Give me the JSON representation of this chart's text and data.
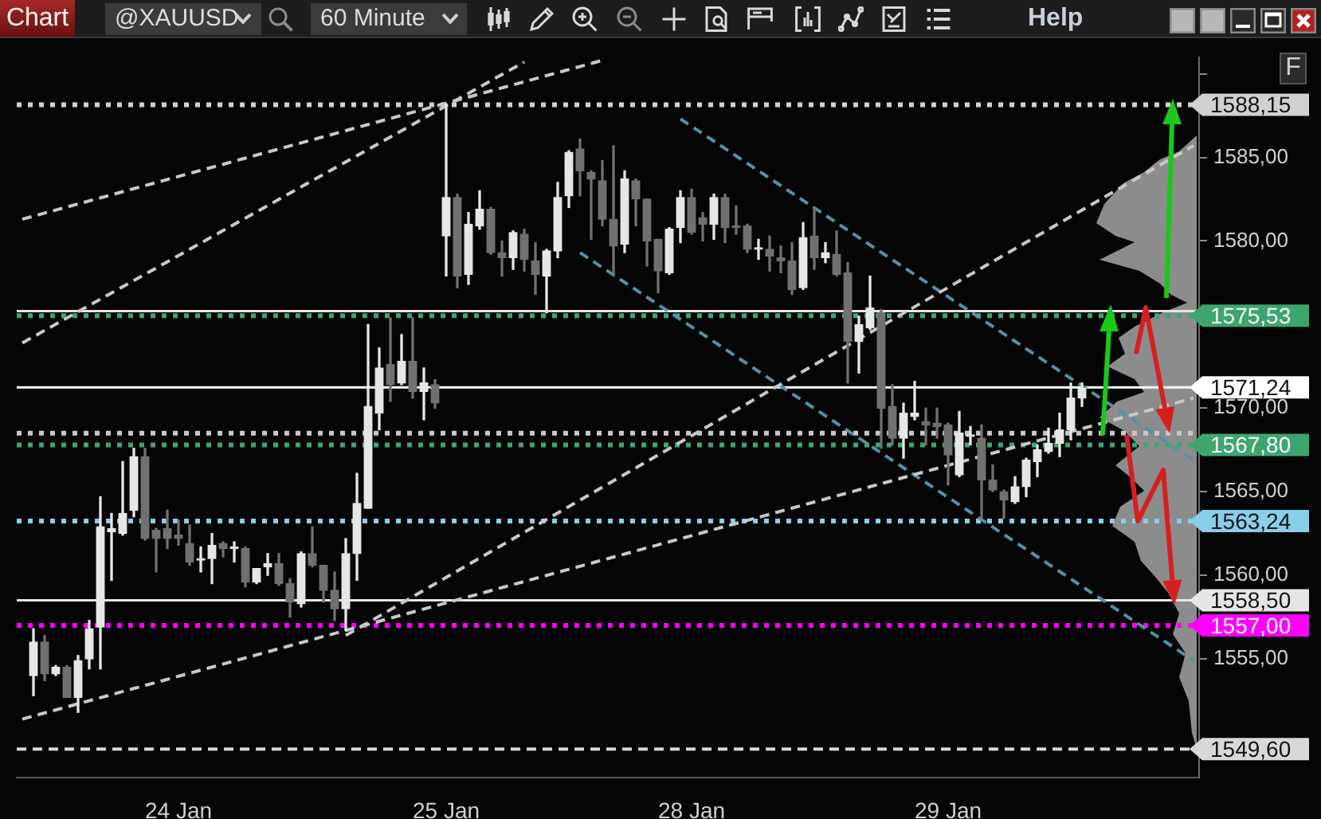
{
  "chart_data": {
    "type": "candlestick",
    "annotations": [
      "Chart",
      "@XAUUSD",
      "60 Minute",
      "Help",
      "F"
    ],
    "categories": [
      null,
      null,
      null,
      null,
      null,
      null,
      null,
      null,
      null,
      null,
      null,
      null,
      null,
      null,
      "24 Jan",
      null,
      null,
      null,
      null,
      null,
      null,
      null,
      null,
      null,
      null,
      null,
      null,
      null,
      null,
      null,
      null,
      null,
      null,
      null,
      null,
      null,
      null,
      null,
      "25 Jan",
      null,
      null,
      null,
      null,
      null,
      null,
      null,
      null,
      null,
      null,
      null,
      null,
      null,
      null,
      null,
      null,
      null,
      null,
      null,
      null,
      null,
      "28 Jan",
      null,
      null,
      null,
      null,
      null,
      null,
      null,
      null,
      null,
      null,
      null,
      null,
      null,
      null,
      null,
      null,
      null,
      null,
      null,
      null,
      null,
      null,
      "29 Jan",
      null,
      null,
      null,
      null,
      null,
      null,
      null,
      null,
      null,
      null,
      null,
      null,
      null,
      null,
      null,
      null,
      null,
      null,
      null,
      null,
      null,
      null
    ],
    "ohlc": [
      null,
      [
        1554.0,
        1556.8,
        1552.8,
        1556.0
      ],
      [
        1556.0,
        1556.4,
        1553.7,
        1554.1
      ],
      [
        1554.1,
        1554.6,
        1554.0,
        1554.5
      ],
      [
        1554.5,
        1554.6,
        1552.7,
        1552.7
      ],
      [
        1552.7,
        1555.2,
        1551.8,
        1554.9
      ],
      [
        1555.0,
        1557.3,
        1554.4,
        1556.8
      ],
      [
        1556.9,
        1564.7,
        1554.4,
        1562.9
      ],
      [
        1562.6,
        1563.7,
        1559.7,
        1562.8
      ],
      [
        1562.5,
        1566.8,
        1562.4,
        1563.7
      ],
      [
        1563.9,
        1567.6,
        1563.5,
        1567.1
      ],
      [
        1567.1,
        1567.6,
        1562.1,
        1562.2
      ],
      [
        1562.7,
        1562.8,
        1560.2,
        1562.2
      ],
      [
        1562.8,
        1563.9,
        1561.6,
        1562.2
      ],
      [
        1562.4,
        1563.3,
        1561.8,
        1562.2
      ],
      [
        1561.9,
        1563.0,
        1560.6,
        1560.8
      ],
      [
        1560.9,
        1561.7,
        1560.2,
        1560.9
      ],
      [
        1561.0,
        1562.5,
        1559.5,
        1561.8
      ],
      [
        1561.9,
        1562.0,
        1561.1,
        1561.6
      ],
      [
        1561.6,
        1562.0,
        1560.8,
        1561.6
      ],
      [
        1561.6,
        1561.7,
        1559.3,
        1559.6
      ],
      [
        1559.6,
        1560.4,
        1559.5,
        1560.4
      ],
      [
        1560.5,
        1561.3,
        1560.0,
        1560.7
      ],
      [
        1560.7,
        1561.3,
        1559.4,
        1559.5
      ],
      [
        1559.5,
        1559.8,
        1557.5,
        1558.4
      ],
      [
        1558.3,
        1561.4,
        1558.1,
        1561.3
      ],
      [
        1561.3,
        1562.9,
        1560.5,
        1560.6
      ],
      [
        1560.6,
        1560.6,
        1558.4,
        1559.1
      ],
      [
        1559.1,
        1560.2,
        1557.3,
        1558.0
      ],
      [
        1558.0,
        1562.2,
        1556.7,
        1561.3
      ],
      [
        1561.3,
        1566.1,
        1559.7,
        1564.3
      ],
      [
        1564.0,
        1575.0,
        1564.0,
        1570.1
      ],
      [
        1569.7,
        1573.6,
        1568.7,
        1572.4
      ],
      [
        1572.6,
        1575.4,
        1570.4,
        1571.4
      ],
      [
        1571.5,
        1574.4,
        1571.4,
        1572.8
      ],
      [
        1572.8,
        1575.4,
        1570.6,
        1571.0
      ],
      [
        1571.0,
        1572.4,
        1569.3,
        1571.5
      ],
      [
        1571.4,
        1571.7,
        1570.0,
        1570.3
      ],
      [
        1580.3,
        1588.2,
        1577.9,
        1582.6
      ],
      [
        1582.6,
        1582.8,
        1577.2,
        1577.9
      ],
      [
        1578.0,
        1581.7,
        1577.4,
        1581.0
      ],
      [
        1580.9,
        1583.0,
        1580.7,
        1581.9
      ],
      [
        1581.9,
        1582.0,
        1579.2,
        1579.3
      ],
      [
        1579.3,
        1580.0,
        1577.9,
        1579.0
      ],
      [
        1579.0,
        1580.6,
        1578.3,
        1580.5
      ],
      [
        1580.4,
        1580.7,
        1578.2,
        1578.9
      ],
      [
        1578.8,
        1579.9,
        1576.8,
        1578.0
      ],
      [
        1577.9,
        1579.5,
        1575.7,
        1579.4
      ],
      [
        1579.4,
        1583.5,
        1579.0,
        1582.6
      ],
      [
        1582.7,
        1585.4,
        1582.0,
        1585.3
      ],
      [
        1585.5,
        1586.1,
        1582.7,
        1584.2
      ],
      [
        1584.1,
        1584.2,
        1580.1,
        1583.7
      ],
      [
        1583.6,
        1584.8,
        1580.9,
        1581.3
      ],
      [
        1581.3,
        1585.7,
        1577.9,
        1579.7
      ],
      [
        1579.8,
        1584.2,
        1579.3,
        1583.7
      ],
      [
        1583.6,
        1583.7,
        1580.9,
        1582.5
      ],
      [
        1582.5,
        1582.5,
        1578.5,
        1580.0
      ],
      [
        1580.1,
        1580.1,
        1576.9,
        1578.2
      ],
      [
        1578.1,
        1580.8,
        1578.0,
        1580.7
      ],
      [
        1580.8,
        1583.0,
        1579.9,
        1582.6
      ],
      [
        1582.6,
        1583.1,
        1580.4,
        1580.5
      ],
      [
        1581.4,
        1581.7,
        1580.0,
        1581.0
      ],
      [
        1581.0,
        1582.8,
        1580.1,
        1582.6
      ],
      [
        1582.6,
        1582.8,
        1579.9,
        1580.8
      ],
      [
        1580.9,
        1582.1,
        1580.4,
        1580.8
      ],
      [
        1580.9,
        1581.0,
        1579.3,
        1579.5
      ],
      [
        1579.5,
        1580.1,
        1578.9,
        1579.5
      ],
      [
        1579.5,
        1580.3,
        1578.2,
        1579.1
      ],
      [
        1579.0,
        1579.7,
        1578.1,
        1578.8
      ],
      [
        1578.8,
        1579.9,
        1576.8,
        1577.1
      ],
      [
        1577.2,
        1581.1,
        1577.1,
        1580.2
      ],
      [
        1580.3,
        1582.0,
        1578.3,
        1579.0
      ],
      [
        1579.0,
        1579.9,
        1578.7,
        1579.3
      ],
      [
        1579.2,
        1580.6,
        1577.9,
        1578.0
      ],
      [
        1578.1,
        1578.7,
        1571.5,
        1574.0
      ],
      [
        1574.0,
        1575.5,
        1572.1,
        1575.0
      ],
      [
        1574.8,
        1577.9,
        1574.7,
        1576.0
      ],
      [
        1575.7,
        1575.9,
        1567.6,
        1570.0
      ],
      [
        1570.1,
        1571.4,
        1567.8,
        1568.2
      ],
      [
        1568.2,
        1570.3,
        1567.0,
        1569.7
      ],
      [
        1569.5,
        1571.6,
        1569.3,
        1569.7
      ],
      [
        1569.2,
        1570.0,
        1567.8,
        1569.0
      ],
      [
        1569.1,
        1570.0,
        1568.2,
        1568.9
      ],
      [
        1569.0,
        1569.1,
        1565.4,
        1567.2
      ],
      [
        1566.0,
        1569.8,
        1565.9,
        1568.5
      ],
      [
        1568.3,
        1568.9,
        1567.8,
        1568.4
      ],
      [
        1568.2,
        1569.0,
        1563.4,
        1565.7
      ],
      [
        1565.7,
        1566.6,
        1565.0,
        1565.1
      ],
      [
        1565.0,
        1565.1,
        1563.4,
        1564.5
      ],
      [
        1564.4,
        1565.9,
        1564.3,
        1565.3
      ],
      [
        1565.3,
        1567.0,
        1564.7,
        1566.9
      ],
      [
        1566.8,
        1567.8,
        1565.9,
        1567.5
      ],
      [
        1567.4,
        1568.8,
        1567.3,
        1567.9
      ],
      [
        1567.9,
        1569.7,
        1567.1,
        1568.7
      ],
      [
        1568.7,
        1571.5,
        1568.1,
        1570.6
      ],
      [
        1570.6,
        1571.5,
        1570.1,
        1571.2
      ],
      null,
      null,
      null,
      null,
      null,
      null,
      null,
      null,
      null,
      null
    ],
    "colors": [
      null,
      "#e6e6e6",
      "#707070",
      "#e6e6e6",
      "#707070",
      "#e6e6e6",
      "#e6e6e6",
      "#e6e6e6",
      "#e6e6e6",
      "#e6e6e6",
      "#e6e6e6",
      "#707070",
      "#707070",
      "#707070",
      "#707070",
      "#707070",
      "#e6e6e6",
      "#e6e6e6",
      "#707070",
      "#e6e6e6",
      "#707070",
      "#e6e6e6",
      "#e6e6e6",
      "#707070",
      "#707070",
      "#e6e6e6",
      "#707070",
      "#707070",
      "#707070",
      "#e6e6e6",
      "#e6e6e6",
      "#e6e6e6",
      "#e6e6e6",
      "#707070",
      "#e6e6e6",
      "#707070",
      "#e6e6e6",
      "#707070",
      "#e6e6e6",
      "#707070",
      "#e6e6e6",
      "#e6e6e6",
      "#707070",
      "#707070",
      "#e6e6e6",
      "#707070",
      "#707070",
      "#e6e6e6",
      "#e6e6e6",
      "#e6e6e6",
      "#707070",
      "#707070",
      "#707070",
      "#707070",
      "#e6e6e6",
      "#707070",
      "#707070",
      "#707070",
      "#e6e6e6",
      "#e6e6e6",
      "#707070",
      "#707070",
      "#e6e6e6",
      "#707070",
      "#707070",
      "#707070",
      "#e6e6e6",
      "#707070",
      "#707070",
      "#707070",
      "#e6e6e6",
      "#707070",
      "#e6e6e6",
      "#707070",
      "#707070",
      "#e6e6e6",
      "#e6e6e6",
      "#707070",
      "#707070",
      "#e6e6e6",
      "#e6e6e6",
      "#707070",
      "#707070",
      "#707070",
      "#e6e6e6",
      "#e6e6e6",
      "#707070",
      "#707070",
      "#707070",
      "#e6e6e6",
      "#e6e6e6",
      "#e6e6e6",
      "#e6e6e6",
      "#e6e6e6",
      "#e6e6e6",
      "#e6e6e6",
      null,
      null,
      null,
      null,
      null,
      null,
      null,
      null,
      null,
      null
    ],
    "series": [
      {
        "type": "line",
        "color": "#c8c8c8",
        "line_style": "dashed",
        "values": [
          1581.3,
          null,
          null,
          null,
          null,
          null,
          null,
          null,
          null,
          null,
          null,
          null,
          null,
          null,
          null,
          null,
          null,
          null,
          null,
          null,
          null,
          null,
          null,
          null,
          null,
          null,
          null,
          null,
          null,
          null,
          null,
          null,
          null,
          null,
          null,
          null,
          null,
          null,
          null,
          null,
          null,
          null,
          null,
          null,
          null,
          null,
          null,
          null,
          null,
          null,
          null,
          null,
          1590.8,
          null,
          null,
          null,
          null,
          null,
          null,
          null,
          null,
          null,
          null,
          null,
          null,
          null,
          null,
          null,
          null,
          null,
          null,
          null,
          null,
          null,
          null,
          null,
          null,
          null,
          null,
          null,
          null,
          null,
          null,
          null,
          null,
          null,
          null,
          null,
          null,
          null,
          null,
          null,
          null,
          null,
          null,
          null,
          null,
          null,
          null,
          null,
          null,
          null,
          null,
          null,
          null,
          null
        ]
      },
      {
        "type": "line",
        "color": "#c8c8c8",
        "line_style": "dashed",
        "values": [
          1573.9,
          null,
          null,
          null,
          null,
          null,
          null,
          null,
          null,
          null,
          null,
          null,
          null,
          null,
          null,
          null,
          null,
          null,
          null,
          null,
          null,
          null,
          null,
          null,
          null,
          null,
          null,
          null,
          null,
          null,
          null,
          null,
          null,
          null,
          null,
          null,
          null,
          null,
          null,
          null,
          null,
          null,
          null,
          null,
          null,
          1590.7,
          null,
          null,
          null,
          null,
          null,
          null,
          null,
          null,
          null,
          null,
          null,
          null,
          null,
          null,
          null,
          null,
          null,
          null,
          null,
          null,
          null,
          null,
          null,
          null,
          null,
          null,
          null,
          null,
          null,
          null,
          null,
          null,
          null,
          null,
          null,
          null,
          null,
          null,
          null,
          null,
          null,
          null,
          null,
          null,
          null,
          null,
          null,
          null,
          null,
          null,
          null,
          null,
          null,
          null,
          null,
          null,
          null,
          null,
          null,
          null
        ]
      },
      {
        "type": "line",
        "color": "#c8c8c8",
        "line_style": "dashed",
        "values": [
          1551.4,
          null,
          null,
          null,
          null,
          null,
          null,
          null,
          null,
          null,
          null,
          null,
          null,
          null,
          null,
          null,
          null,
          null,
          null,
          null,
          null,
          null,
          null,
          null,
          null,
          null,
          null,
          null,
          null,
          null,
          null,
          null,
          null,
          null,
          null,
          null,
          null,
          null,
          null,
          null,
          null,
          null,
          null,
          null,
          null,
          null,
          null,
          null,
          null,
          null,
          null,
          null,
          null,
          null,
          null,
          null,
          null,
          null,
          null,
          null,
          null,
          null,
          null,
          null,
          null,
          null,
          null,
          null,
          null,
          null,
          null,
          null,
          null,
          null,
          null,
          null,
          null,
          null,
          null,
          null,
          null,
          null,
          null,
          null,
          null,
          null,
          null,
          null,
          null,
          null,
          null,
          null,
          null,
          null,
          null,
          null,
          null,
          null,
          null,
          null,
          null,
          null,
          null,
          null,
          null,
          1570.6
        ]
      },
      {
        "type": "line",
        "color": "#c8c8c8",
        "line_style": "dashed",
        "values": [
          null,
          null,
          null,
          null,
          null,
          null,
          null,
          null,
          null,
          null,
          null,
          null,
          null,
          null,
          null,
          null,
          null,
          null,
          null,
          null,
          null,
          null,
          null,
          null,
          null,
          null,
          null,
          null,
          null,
          1556.4,
          null,
          null,
          null,
          null,
          null,
          null,
          null,
          null,
          null,
          null,
          null,
          null,
          null,
          null,
          null,
          null,
          null,
          null,
          null,
          null,
          null,
          null,
          null,
          null,
          null,
          null,
          null,
          null,
          null,
          null,
          null,
          null,
          null,
          null,
          null,
          null,
          null,
          null,
          null,
          null,
          null,
          null,
          null,
          null,
          null,
          null,
          null,
          null,
          null,
          null,
          null,
          null,
          null,
          null,
          null,
          null,
          null,
          null,
          null,
          null,
          null,
          null,
          null,
          null,
          null,
          null,
          null,
          null,
          null,
          null,
          null,
          null,
          null,
          null,
          null,
          1585.7
        ]
      },
      {
        "type": "line",
        "color": "#4f93a8",
        "line_style": "dashed",
        "values": [
          null,
          null,
          null,
          null,
          null,
          null,
          null,
          null,
          null,
          null,
          null,
          null,
          null,
          null,
          null,
          null,
          null,
          null,
          null,
          null,
          null,
          null,
          null,
          null,
          null,
          null,
          null,
          null,
          null,
          null,
          null,
          null,
          null,
          null,
          null,
          null,
          null,
          null,
          null,
          null,
          null,
          null,
          null,
          null,
          null,
          null,
          null,
          null,
          null,
          null,
          null,
          null,
          null,
          null,
          null,
          null,
          null,
          null,
          null,
          1587.3,
          null,
          null,
          null,
          null,
          null,
          null,
          null,
          null,
          null,
          null,
          null,
          null,
          null,
          null,
          null,
          null,
          null,
          null,
          null,
          null,
          null,
          null,
          null,
          null,
          null,
          null,
          null,
          null,
          null,
          null,
          null,
          null,
          null,
          null,
          null,
          null,
          null,
          null,
          null,
          null,
          null,
          null,
          null,
          null,
          null,
          1566.9
        ]
      },
      {
        "type": "line",
        "color": "#4f93a8",
        "line_style": "dashed",
        "values": [
          null,
          null,
          null,
          null,
          null,
          null,
          null,
          null,
          null,
          null,
          null,
          null,
          null,
          null,
          null,
          null,
          null,
          null,
          null,
          null,
          null,
          null,
          null,
          null,
          null,
          null,
          null,
          null,
          null,
          null,
          null,
          null,
          null,
          null,
          null,
          null,
          null,
          null,
          null,
          null,
          null,
          null,
          null,
          null,
          null,
          null,
          null,
          null,
          null,
          null,
          1579.3,
          null,
          null,
          null,
          null,
          null,
          null,
          null,
          null,
          null,
          null,
          null,
          null,
          null,
          null,
          null,
          null,
          null,
          null,
          null,
          null,
          null,
          null,
          null,
          null,
          null,
          null,
          null,
          null,
          null,
          null,
          null,
          null,
          null,
          null,
          null,
          null,
          null,
          null,
          null,
          null,
          null,
          null,
          null,
          null,
          null,
          null,
          null,
          null,
          null,
          null,
          null,
          null,
          null,
          null,
          1554.9
        ]
      }
    ],
    "ylim": [
      1547.9,
      1591.0
    ],
    "yticks": [
      {
        "value": 1550,
        "label": null
      },
      {
        "value": 1555,
        "label": "1555,00"
      },
      {
        "value": 1560,
        "label": "1560,00"
      },
      {
        "value": 1565,
        "label": "1565,00"
      },
      {
        "value": 1570,
        "label": "1570,00"
      },
      {
        "value": 1575,
        "label": null
      },
      {
        "value": 1580,
        "label": "1580,00"
      },
      {
        "value": 1585,
        "label": "1585,00"
      },
      {
        "value": 1590,
        "label": null
      }
    ],
    "ref_lines": [
      {
        "axis": "y",
        "value": 1588.15,
        "label": "1588,15",
        "color": "#d0d0d0",
        "line_style": "dotted"
      },
      {
        "axis": "y",
        "value": 1575.8,
        "color": "#e6e6e6",
        "line_style": "solid"
      },
      {
        "axis": "y",
        "value": 1575.53,
        "label": "1575,53",
        "color": "#3da66f",
        "line_style": "dotted"
      },
      {
        "axis": "y",
        "value": 1571.24,
        "label": "1571,24",
        "color": "#ffffff",
        "line_style": "solid"
      },
      {
        "axis": "y",
        "value": 1568.5,
        "color": "#c8c8c8",
        "line_style": "dotted"
      },
      {
        "axis": "y",
        "value": 1567.8,
        "label": "1567,80",
        "color": "#3da66f",
        "line_style": "dotted"
      },
      {
        "axis": "y",
        "value": 1563.24,
        "label": "1563,24",
        "color": "#87cee8",
        "line_style": "dotted"
      },
      {
        "axis": "y",
        "value": 1558.5,
        "label": "1558,50",
        "color": "#e6e6e6",
        "line_style": "solid"
      },
      {
        "axis": "y",
        "value": 1557,
        "label": "1557,00",
        "color": "#ff00ff",
        "line_style": "dotted"
      },
      {
        "axis": "y",
        "value": 1549.6,
        "label": "1549,60",
        "color": "#d8d8d8",
        "line_style": "dashed"
      }
    ]
  }
}
